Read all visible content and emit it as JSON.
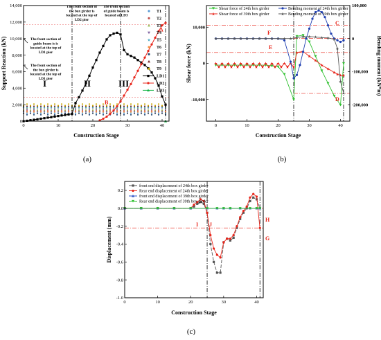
{
  "chart_data": [
    {
      "panel": "a",
      "type": "line",
      "xlabel": "Construction Stage",
      "ylabel": "Support Reaction (kN)",
      "xlim": [
        0,
        42
      ],
      "ylim": [
        0,
        14000
      ],
      "xticks": [
        "0",
        "10",
        "20",
        "30",
        "40"
      ],
      "yticks": [
        "0",
        "2000",
        "4000",
        "6000",
        "8000",
        "10000",
        "12000",
        "14000"
      ],
      "legend_position": "top-right",
      "legend": [
        "T1",
        "T2",
        "T3",
        "T4",
        "T5",
        "T6",
        "T7",
        "T8",
        "T9",
        "LD1",
        "LD2",
        "LD3"
      ],
      "series": [
        {
          "name": "LD1",
          "color": "#000000",
          "x": [
            0,
            1,
            2,
            3,
            4,
            5,
            6,
            7,
            8,
            9,
            10,
            11,
            12,
            13,
            14,
            15,
            16,
            17,
            18,
            19,
            20,
            21,
            22,
            23,
            24,
            25,
            26,
            27,
            28,
            29,
            30,
            31,
            32,
            33,
            34,
            35,
            36,
            37,
            38,
            39,
            40,
            41
          ],
          "y": [
            0,
            50,
            110,
            170,
            230,
            300,
            360,
            430,
            490,
            560,
            620,
            690,
            750,
            820,
            880,
            2200,
            2900,
            3700,
            4600,
            5500,
            6500,
            7400,
            8300,
            9100,
            9900,
            10400,
            10600,
            10700,
            10500,
            8600,
            8100,
            7900,
            7700,
            7400,
            7100,
            6800,
            6400,
            5900,
            5200,
            4300,
            3000,
            2000
          ]
        },
        {
          "name": "LD2",
          "color": "#e8251a",
          "x": [
            22,
            23,
            24,
            25,
            26,
            27,
            28,
            29,
            30,
            31,
            32,
            33,
            34,
            35,
            36,
            37,
            38,
            39,
            40,
            41
          ],
          "y": [
            100,
            300,
            550,
            900,
            1300,
            1800,
            2400,
            3100,
            3800,
            4500,
            5300,
            6100,
            6900,
            7700,
            8500,
            9300,
            10100,
            10900,
            11600,
            11900
          ]
        },
        {
          "name": "LD3",
          "color": "#18b548",
          "x": [
            41
          ],
          "y": [
            0
          ]
        }
      ],
      "markers": {
        "colors": [
          "#5b9bd5",
          "#c0504d",
          "#9bbb59",
          "#8064a2",
          "#4bacc6",
          "#f79646",
          "#2c4d75",
          "#772c2a",
          "#c9a900"
        ],
        "levels": [
          1100,
          1250,
          1400,
          1550,
          1650,
          1000,
          900,
          1800,
          1950
        ]
      },
      "dash_lines": {
        "vertical_x": [
          14,
          28,
          41
        ],
        "horizontal_y": [
          11700,
          2900
        ]
      },
      "regions": [
        "I",
        "II",
        "III"
      ],
      "points": [
        {
          "label": "A",
          "x": 41,
          "y": 11700
        },
        {
          "label": "B",
          "x": 24,
          "y": 2900
        }
      ],
      "annotations": [
        {
          "lines": [
            "The front section of",
            "guide beam is is",
            "located at the top of",
            "LD1 pier"
          ]
        },
        {
          "lines": [
            "The front section of",
            "the box girder is",
            "located at the top of",
            "LD1 pier"
          ]
        },
        {
          "lines": [
            "The front section of",
            "the box girder is",
            "located at the top of",
            "LD2 pier"
          ]
        },
        {
          "lines": [
            "The front section",
            "of guide beam is",
            "located at LD3"
          ]
        }
      ],
      "caption": "(a)"
    },
    {
      "panel": "b",
      "type": "line",
      "xlabel": "Construction Stage",
      "ylabel": "Shear force (kN)",
      "y2label": "Bending moment (kN*m)",
      "xlim": [
        -3,
        43
      ],
      "ylim": [
        -16000,
        16000
      ],
      "y2lim": [
        -250000,
        100000
      ],
      "xticks": [
        "0",
        "10",
        "20",
        "30",
        "40"
      ],
      "yticks": [
        "-10,000",
        "0",
        "10,000"
      ],
      "y2ticks": [
        "-200,000",
        "-100,000",
        "0",
        "100,000"
      ],
      "legend": [
        "Shear force of 24th box girder",
        "Shear force of 39th box girder",
        "Bending moment of 24th box girder",
        "Bending moment of 39th box girder"
      ],
      "series": [
        {
          "name": "Shear force of 24th box girder",
          "axis": "left",
          "color": "#2ec02e",
          "x": [
            0,
            2,
            4,
            6,
            8,
            10,
            12,
            14,
            16,
            18,
            20,
            22,
            25,
            26,
            28,
            30,
            32,
            34,
            36,
            38,
            40,
            41
          ],
          "y": [
            -500,
            -500,
            -500,
            -500,
            -500,
            -500,
            -500,
            -500,
            -500,
            -700,
            -900,
            -3000,
            -10000,
            7500,
            7800,
            6000,
            2000,
            -2000,
            -5500,
            -9000,
            -11500,
            0
          ]
        },
        {
          "name": "Shear force of 39th box girder",
          "axis": "left",
          "color": "#e8251a",
          "x": [
            0,
            1,
            2,
            3,
            4,
            5,
            6,
            7,
            8,
            9,
            10,
            11,
            12,
            13,
            14,
            15,
            16,
            17,
            18,
            19,
            20,
            21,
            22,
            23,
            24,
            25,
            26,
            28,
            30,
            32,
            34,
            36,
            38,
            39,
            40,
            41
          ],
          "y": [
            0,
            -1000,
            0,
            -1000,
            0,
            -1000,
            0,
            -1000,
            0,
            -1000,
            0,
            -1000,
            0,
            -1000,
            0,
            -1000,
            0,
            -1000,
            0,
            -1000,
            0,
            -1000,
            0,
            -1000,
            0,
            -1000,
            3000,
            3300,
            2000,
            800,
            -500,
            -1500,
            -2500,
            -3000,
            -3300,
            -3300
          ]
        },
        {
          "name": "Bending moment of 24th box girder",
          "axis": "right",
          "color": "#1f3fb0",
          "x": [
            0,
            2,
            4,
            6,
            8,
            10,
            12,
            14,
            16,
            18,
            20,
            22,
            24,
            25,
            26,
            27,
            28,
            29,
            30,
            31,
            32,
            33,
            34,
            35,
            36,
            37,
            38,
            39,
            40,
            41
          ],
          "y": [
            0,
            0,
            0,
            0,
            0,
            0,
            0,
            0,
            0,
            0,
            0,
            -5000,
            -70000,
            -120000,
            -110000,
            -80000,
            -40000,
            0,
            30000,
            60000,
            80000,
            85000,
            80000,
            65000,
            40000,
            15000,
            0,
            -5000,
            -10000,
            -5000
          ]
        },
        {
          "name": "Bending moment of 39th box girder",
          "axis": "right",
          "color": "#555555",
          "x": [
            0,
            2,
            4,
            6,
            8,
            10,
            12,
            14,
            16,
            18,
            20,
            22,
            24,
            26,
            28,
            30,
            32,
            34,
            36,
            38,
            39,
            40,
            41
          ],
          "y": [
            0,
            0,
            0,
            0,
            0,
            0,
            0,
            0,
            0,
            0,
            0,
            0,
            0,
            3000,
            6000,
            6000,
            5000,
            3000,
            2000,
            -2000,
            -30000,
            -130000,
            -165000
          ]
        }
      ],
      "dash_lines": {
        "vertical_x": [
          25,
          41
        ],
        "horizontal_y": [
          10500,
          3000
        ],
        "horizontal_y2": [
          0,
          -165000
        ]
      },
      "points": [
        {
          "label": "C"
        },
        {
          "label": "F"
        },
        {
          "label": "E"
        },
        {
          "label": "D"
        }
      ],
      "caption": "(b)"
    },
    {
      "panel": "c",
      "type": "line",
      "xlabel": "Construction Stage",
      "ylabel": "Displacement (mm)",
      "xlim": [
        0,
        42
      ],
      "ylim": [
        -1.0,
        0.3
      ],
      "xticks": [
        "0",
        "10",
        "20",
        "30",
        "40"
      ],
      "yticks": [
        "-1.0",
        "-0.8",
        "-0.6",
        "-0.4",
        "-0.2",
        "0.0",
        "0.2"
      ],
      "legend": [
        "front end displacement of 24th box girder",
        "Rear end displacement of 24th box girder",
        "front end displacement of 39th box girder",
        "Rear end displacement of 39th box girder"
      ],
      "series": [
        {
          "name": "front end displacement of 24th box girder",
          "color": "#555555",
          "dash": "5,2",
          "x": [
            0,
            5,
            10,
            15,
            20,
            21,
            22,
            23,
            24,
            25,
            26,
            27,
            28,
            29,
            30,
            31,
            32,
            33,
            34,
            35,
            36,
            37,
            38,
            39,
            40,
            41
          ],
          "y": [
            0,
            0,
            0,
            0,
            0,
            0.02,
            0.05,
            0.07,
            0.05,
            -0.05,
            -0.4,
            -0.6,
            -0.72,
            -0.72,
            -0.38,
            -0.34,
            -0.36,
            -0.33,
            -0.22,
            -0.12,
            -0.05,
            0,
            0.08,
            0.12,
            0.1,
            0
          ]
        },
        {
          "name": "Rear end displacement of 24th box girder",
          "color": "#e8251a",
          "dash": "",
          "x": [
            0,
            5,
            10,
            15,
            20,
            21,
            22,
            23,
            24,
            25,
            26,
            27,
            28,
            29,
            30,
            31,
            32,
            33,
            34,
            35,
            36,
            37,
            38,
            39,
            40,
            41
          ],
          "y": [
            0,
            0,
            0,
            0,
            0,
            0.04,
            0.07,
            0.1,
            0.08,
            -0.05,
            -0.3,
            -0.45,
            -0.52,
            -0.55,
            -0.38,
            -0.34,
            -0.34,
            -0.3,
            -0.2,
            -0.1,
            -0.03,
            0.02,
            0.12,
            0.16,
            0.13,
            -0.22
          ]
        },
        {
          "name": "front end displacement of 39th box girder",
          "color": "#2f55c8",
          "dash": "",
          "x": [
            0,
            5,
            10,
            15,
            20,
            25,
            28,
            30,
            32,
            35,
            38,
            40,
            41
          ],
          "y": [
            0,
            0,
            0,
            0,
            0,
            0,
            0,
            0,
            0,
            0,
            0,
            0,
            0
          ]
        },
        {
          "name": "Rear end displacement of 39th box girder",
          "color": "#2ec02e",
          "dash": "",
          "x": [
            0,
            5,
            10,
            15,
            20,
            25,
            28,
            30,
            32,
            35,
            38,
            40,
            41
          ],
          "y": [
            0,
            0,
            0,
            0,
            0,
            0,
            0,
            0,
            0,
            0,
            0,
            0,
            0
          ]
        }
      ],
      "dash_lines": {
        "vertical_x": [
          25,
          41
        ],
        "horizontal_y": [
          0,
          -0.22
        ]
      },
      "points": [
        {
          "label": "H"
        },
        {
          "label": "G"
        },
        {
          "label": "I"
        },
        {
          "label": "J"
        }
      ],
      "caption": "(c)"
    }
  ]
}
